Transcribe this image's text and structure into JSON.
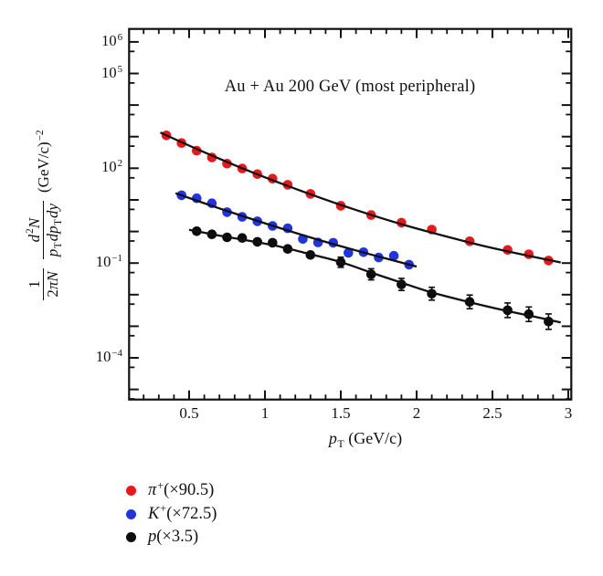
{
  "chart_data": {
    "type": "scatter",
    "title": "Au + Au 200 GeV (most peripheral)",
    "xlabel": "pT (GeV/c)",
    "ylabel": "1/(2πN) · d²N/(pT dpT dy) (GeV/c)⁻²",
    "grid": false,
    "x_axis": {
      "min": 0.104,
      "max": 3.02,
      "major_ticks": [
        0.5,
        1,
        1.5,
        2,
        2.5,
        3
      ],
      "tick_labels": [
        "0.5",
        "1",
        "1.5",
        "2",
        "2.5",
        "3"
      ],
      "minor_step": 0.1
    },
    "y_axis": {
      "scale": "log",
      "log_min": -5.32,
      "log_max": 6.41,
      "labeled_decades": [
        6,
        5,
        2,
        -1,
        -4
      ],
      "minor_tick_at_times5": true
    },
    "series": [
      {
        "id": "pi",
        "name": "π+ (×90.5)",
        "color": "#e8191c",
        "marker": "circle",
        "pT": [
          0.35,
          0.45,
          0.55,
          0.65,
          0.75,
          0.85,
          0.95,
          1.05,
          1.15,
          1.3,
          1.5,
          1.7,
          1.9,
          2.1,
          2.35,
          2.6,
          2.74,
          2.87
        ],
        "values": [
          1100,
          630,
          360,
          220,
          140,
          98,
          65,
          47,
          30,
          15.5,
          6.5,
          3.3,
          1.9,
          1.15,
          0.49,
          0.26,
          0.19,
          0.12
        ],
        "err_factor": [
          1,
          1,
          1,
          1,
          1,
          1,
          1,
          1,
          1,
          1,
          1,
          1,
          1,
          1,
          1,
          1,
          1,
          1
        ],
        "fit_log10": [
          [
            0.31,
            3.13
          ],
          [
            0.55,
            2.61
          ],
          [
            0.85,
            2.0
          ],
          [
            1.15,
            1.44
          ],
          [
            1.5,
            0.84
          ],
          [
            1.9,
            0.23
          ],
          [
            2.35,
            -0.35
          ],
          [
            2.6,
            -0.63
          ],
          [
            2.95,
            -0.98
          ]
        ]
      },
      {
        "id": "kaon",
        "name": "K+ (×72.5)",
        "color": "#2234e0",
        "marker": "circle",
        "pT": [
          0.45,
          0.55,
          0.65,
          0.75,
          0.85,
          0.95,
          1.05,
          1.15,
          1.25,
          1.35,
          1.45,
          1.55,
          1.65,
          1.75,
          1.85,
          1.95
        ],
        "values": [
          14,
          11.2,
          7.8,
          4.1,
          2.9,
          2.1,
          1.5,
          1.26,
          0.58,
          0.45,
          0.44,
          0.21,
          0.22,
          0.15,
          0.17,
          0.089
        ],
        "err_factor": [
          1,
          1,
          1,
          1,
          1,
          1,
          1,
          1,
          1,
          1,
          1,
          1,
          1,
          1,
          1,
          1
        ],
        "fit_log10": [
          [
            0.41,
            1.21
          ],
          [
            0.7,
            0.73
          ],
          [
            1.0,
            0.26
          ],
          [
            1.3,
            -0.19
          ],
          [
            1.6,
            -0.6
          ],
          [
            1.8,
            -0.86
          ],
          [
            2.0,
            -1.11
          ]
        ]
      },
      {
        "id": "proton",
        "name": "p (×3.5)",
        "color": "#0c0c0c",
        "marker": "circle",
        "pT": [
          0.55,
          0.65,
          0.75,
          0.85,
          0.95,
          1.05,
          1.15,
          1.3,
          1.5,
          1.7,
          1.9,
          2.1,
          2.35,
          2.6,
          2.74,
          2.87
        ],
        "values": [
          1.02,
          0.81,
          0.65,
          0.62,
          0.47,
          0.44,
          0.28,
          0.18,
          0.106,
          0.044,
          0.021,
          0.0107,
          0.0059,
          0.0032,
          0.0024,
          0.0014
        ],
        "err_factor": [
          1,
          1,
          1,
          1,
          1,
          1,
          1,
          1.2,
          1.45,
          1.5,
          1.55,
          1.6,
          1.65,
          1.7,
          1.7,
          1.75
        ],
        "fit_log10": [
          [
            0.5,
            0.05
          ],
          [
            0.7,
            -0.13
          ],
          [
            0.9,
            -0.3
          ],
          [
            1.1,
            -0.48
          ],
          [
            1.3,
            -0.72
          ],
          [
            1.5,
            -0.97
          ],
          [
            1.7,
            -1.3
          ],
          [
            1.9,
            -1.62
          ],
          [
            2.1,
            -1.93
          ],
          [
            2.35,
            -2.24
          ],
          [
            2.6,
            -2.52
          ],
          [
            2.8,
            -2.72
          ],
          [
            2.95,
            -2.88
          ]
        ]
      }
    ],
    "legend_items": [
      {
        "id": "pi",
        "color": "#e8191c",
        "tokens": [
          [
            "i",
            "π"
          ],
          [
            "sup",
            "+"
          ],
          [
            "",
            "(×90.5)"
          ]
        ]
      },
      {
        "id": "kaon",
        "color": "#2234e0",
        "tokens": [
          [
            "i",
            "K"
          ],
          [
            "sup",
            "+"
          ],
          [
            "",
            "(×72.5)"
          ]
        ]
      },
      {
        "id": "proton",
        "color": "#0c0c0c",
        "tokens": [
          [
            "i",
            "p"
          ],
          [
            "",
            "(×3.5)"
          ]
        ]
      }
    ]
  },
  "text": {
    "xlabel_tokens": [
      [
        "i",
        "p"
      ],
      [
        "sub",
        "T"
      ],
      [
        "",
        " (GeV/c)"
      ]
    ],
    "ylabel_parts": {
      "frac1_num": [
        [
          "",
          "1"
        ]
      ],
      "frac1_den": [
        [
          "",
          "2"
        ],
        [
          "i",
          "π"
        ],
        [
          "i",
          "N"
        ]
      ],
      "frac2_num": [
        [
          "i",
          "d"
        ],
        [
          "sup",
          "2"
        ],
        [
          "i",
          "N"
        ]
      ],
      "frac2_den": [
        [
          "i",
          "p"
        ],
        [
          "sub",
          "T"
        ],
        [
          "i",
          "dp"
        ],
        [
          "sub",
          "T"
        ],
        [
          "i",
          "dy"
        ]
      ],
      "unit": [
        [
          "",
          "(GeV/c)"
        ],
        [
          "sup",
          "−2"
        ]
      ]
    }
  }
}
